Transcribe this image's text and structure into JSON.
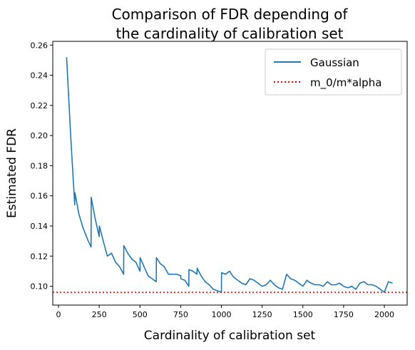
{
  "chart_data": {
    "type": "line",
    "title_line1": "Comparison of FDR depending of",
    "title_line2": "the cardinality of calibration set",
    "xlabel": "Cardinality of calibration set",
    "ylabel": "Estimated FDR",
    "xlim": [
      -35,
      2140
    ],
    "ylim": [
      0.0875,
      0.2625
    ],
    "xticks": [
      0,
      250,
      500,
      750,
      1000,
      1250,
      1500,
      1750,
      2000
    ],
    "xtick_labels": [
      "0",
      "250",
      "500",
      "750",
      "1000",
      "1250",
      "1500",
      "1750",
      "2000"
    ],
    "yticks": [
      0.1,
      0.12,
      0.14,
      0.16,
      0.18,
      0.2,
      0.22,
      0.24,
      0.26
    ],
    "ytick_labels": [
      "0.10",
      "0.12",
      "0.14",
      "0.16",
      "0.18",
      "0.20",
      "0.22",
      "0.24",
      "0.26"
    ],
    "grid": false,
    "legend_position": "top-right",
    "series": [
      {
        "name": "Gaussian",
        "color": "#1f77b4",
        "style": "solid",
        "x": [
          50,
          75,
          100,
          101,
          125,
          150,
          175,
          200,
          201,
          225,
          250,
          251,
          275,
          300,
          325,
          350,
          375,
          400,
          401,
          425,
          450,
          475,
          500,
          501,
          525,
          550,
          575,
          600,
          601,
          625,
          650,
          675,
          700,
          725,
          750,
          751,
          775,
          800,
          801,
          825,
          850,
          851,
          875,
          900,
          925,
          950,
          975,
          1000,
          1001,
          1025,
          1050,
          1075,
          1100,
          1125,
          1150,
          1175,
          1200,
          1225,
          1250,
          1275,
          1300,
          1325,
          1350,
          1375,
          1400,
          1425,
          1450,
          1475,
          1500,
          1525,
          1550,
          1575,
          1600,
          1625,
          1650,
          1675,
          1700,
          1725,
          1750,
          1775,
          1800,
          1825,
          1850,
          1875,
          1900,
          1925,
          1950,
          1975,
          2000,
          2025,
          2050
        ],
        "y": [
          0.252,
          0.2,
          0.154,
          0.162,
          0.148,
          0.139,
          0.132,
          0.126,
          0.159,
          0.145,
          0.133,
          0.14,
          0.13,
          0.12,
          0.122,
          0.116,
          0.113,
          0.108,
          0.127,
          0.122,
          0.118,
          0.116,
          0.11,
          0.119,
          0.113,
          0.107,
          0.105,
          0.103,
          0.119,
          0.115,
          0.113,
          0.108,
          0.108,
          0.108,
          0.107,
          0.105,
          0.104,
          0.1,
          0.111,
          0.11,
          0.108,
          0.112,
          0.107,
          0.103,
          0.101,
          0.098,
          0.097,
          0.096,
          0.109,
          0.108,
          0.11,
          0.106,
          0.104,
          0.102,
          0.101,
          0.105,
          0.104,
          0.102,
          0.1,
          0.101,
          0.104,
          0.101,
          0.099,
          0.098,
          0.108,
          0.105,
          0.104,
          0.102,
          0.1,
          0.104,
          0.102,
          0.101,
          0.101,
          0.1,
          0.103,
          0.101,
          0.101,
          0.102,
          0.1,
          0.099,
          0.1,
          0.098,
          0.102,
          0.103,
          0.101,
          0.101,
          0.1,
          0.098,
          0.096,
          0.103,
          0.102
        ]
      },
      {
        "name": "m_0/m*alpha",
        "color": "#ff0000",
        "style": "dotted",
        "y_constant": 0.096
      }
    ]
  }
}
